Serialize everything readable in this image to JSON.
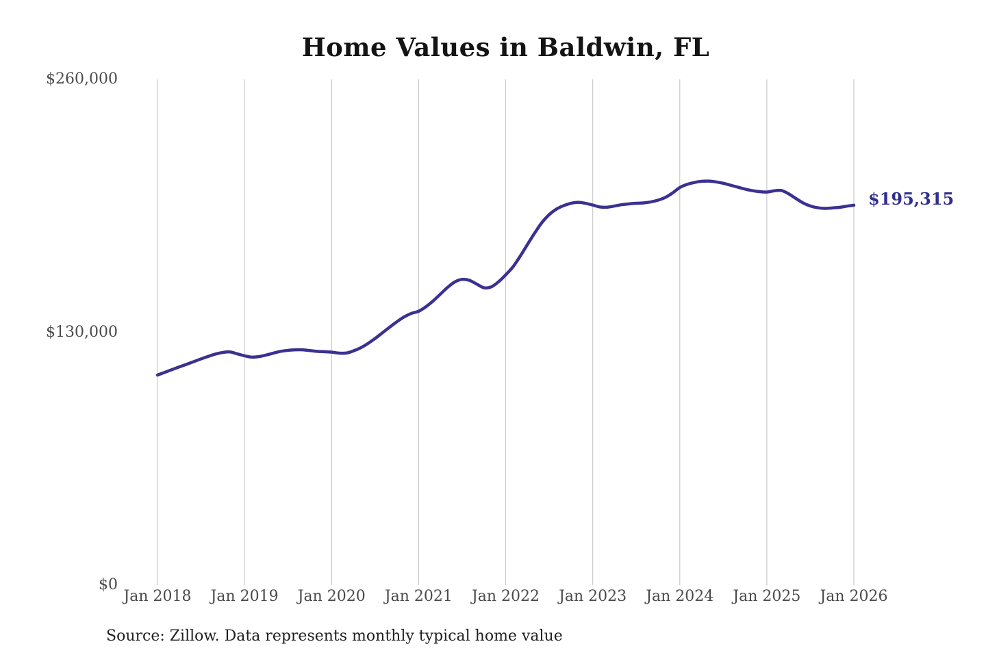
{
  "source_note": "Source: Zillow. Data represents monthly typical home value",
  "colors": {
    "line": "#3a3192",
    "annotation": "#322e8e",
    "grid": "#cccccc",
    "title": "#141414",
    "axis_labels": "#4a4a4a",
    "source_text": "#1f1f1f",
    "background": "#ffffff"
  },
  "chart_data": {
    "type": "line",
    "title": "Home Values in Baldwin, FL",
    "xlabel": "",
    "ylabel": "",
    "x_unit": "month",
    "x_range": [
      "Jan 2018",
      "Jan 2026"
    ],
    "x_tick_labels": [
      "Jan 2018",
      "Jan 2019",
      "Jan 2020",
      "Jan 2021",
      "Jan 2022",
      "Jan 2023",
      "Jan 2024",
      "Jan 2025",
      "Jan 2026"
    ],
    "months_per_tick": 12,
    "ylim": [
      0,
      260000
    ],
    "y_ticks": [
      {
        "label": "$0",
        "value": 0
      },
      {
        "label": "$130,000",
        "value": 130000
      },
      {
        "label": "$260,000",
        "value": 260000
      }
    ],
    "grid": "vertical-only",
    "legend": "none",
    "last_value_label": "$195,315",
    "last_value": 195315,
    "values": [
      108000,
      109400,
      110800,
      112200,
      113500,
      114900,
      116300,
      117600,
      118800,
      119600,
      119900,
      118900,
      117900,
      117200,
      117500,
      118300,
      119300,
      120200,
      120700,
      121000,
      121000,
      120600,
      120200,
      120000,
      119800,
      119300,
      119300,
      120400,
      122000,
      124200,
      126800,
      129700,
      132600,
      135400,
      137900,
      139700,
      140800,
      143100,
      146100,
      149600,
      153100,
      155900,
      157200,
      156700,
      154800,
      152900,
      153300,
      155900,
      159500,
      163600,
      169100,
      175100,
      181000,
      186400,
      190500,
      193300,
      195100,
      196300,
      196800,
      196300,
      195400,
      194400,
      194300,
      194900,
      195600,
      196000,
      196300,
      196500,
      197000,
      197900,
      199300,
      201600,
      204400,
      206000,
      207000,
      207600,
      207700,
      207300,
      206600,
      205600,
      204600,
      203600,
      202800,
      202300,
      202100,
      202700,
      202900,
      201200,
      198800,
      196500,
      194900,
      194000,
      193700,
      193900,
      194200,
      194800,
      195315
    ]
  }
}
